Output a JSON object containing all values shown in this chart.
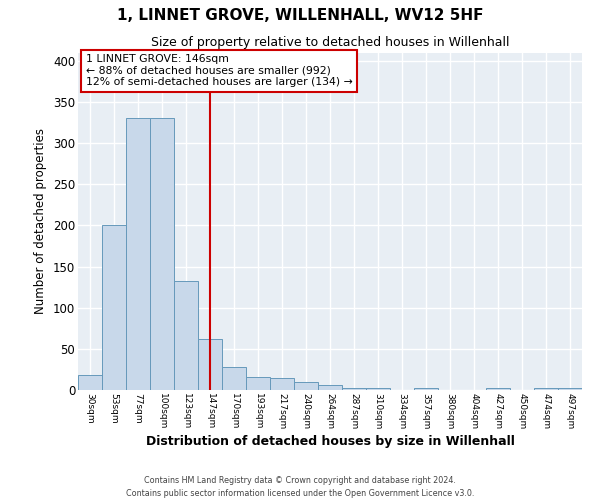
{
  "title": "1, LINNET GROVE, WILLENHALL, WV12 5HF",
  "subtitle": "Size of property relative to detached houses in Willenhall",
  "xlabel": "Distribution of detached houses by size in Willenhall",
  "ylabel": "Number of detached properties",
  "bar_color": "#c8d8ea",
  "bar_edge_color": "#6699bb",
  "background_color": "#e8eef4",
  "grid_color": "#ffffff",
  "tick_labels": [
    "30sqm",
    "53sqm",
    "77sqm",
    "100sqm",
    "123sqm",
    "147sqm",
    "170sqm",
    "193sqm",
    "217sqm",
    "240sqm",
    "264sqm",
    "287sqm",
    "310sqm",
    "334sqm",
    "357sqm",
    "380sqm",
    "404sqm",
    "427sqm",
    "450sqm",
    "474sqm",
    "497sqm"
  ],
  "bar_heights": [
    18,
    200,
    330,
    330,
    132,
    62,
    28,
    16,
    15,
    10,
    6,
    3,
    3,
    0,
    3,
    0,
    0,
    3,
    0,
    3,
    3
  ],
  "ylim": [
    0,
    410
  ],
  "yticks": [
    0,
    50,
    100,
    150,
    200,
    250,
    300,
    350,
    400
  ],
  "property_line_label": "1 LINNET GROVE: 146sqm",
  "annotation_line1": "← 88% of detached houses are smaller (992)",
  "annotation_line2": "12% of semi-detached houses are larger (134) →",
  "vline_color": "#cc0000",
  "annotation_box_color": "#cc0000",
  "footer1": "Contains HM Land Registry data © Crown copyright and database right 2024.",
  "footer2": "Contains public sector information licensed under the Open Government Licence v3.0."
}
